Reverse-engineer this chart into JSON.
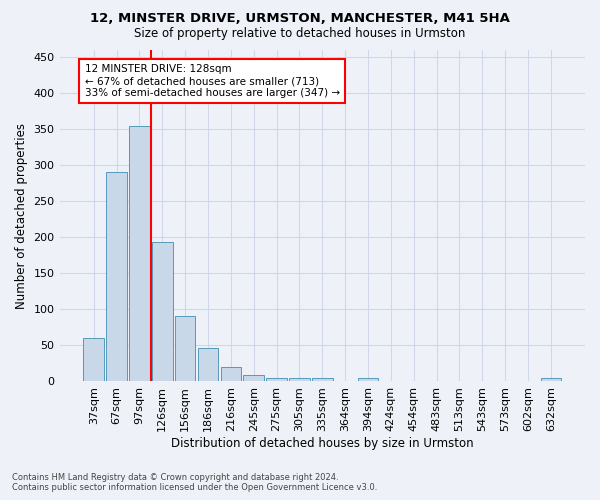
{
  "title": "12, MINSTER DRIVE, URMSTON, MANCHESTER, M41 5HA",
  "subtitle": "Size of property relative to detached houses in Urmston",
  "xlabel": "Distribution of detached houses by size in Urmston",
  "ylabel": "Number of detached properties",
  "footer_line1": "Contains HM Land Registry data © Crown copyright and database right 2024.",
  "footer_line2": "Contains public sector information licensed under the Open Government Licence v3.0.",
  "bar_labels": [
    "37sqm",
    "67sqm",
    "97sqm",
    "126sqm",
    "156sqm",
    "186sqm",
    "216sqm",
    "245sqm",
    "275sqm",
    "305sqm",
    "335sqm",
    "364sqm",
    "394sqm",
    "424sqm",
    "454sqm",
    "483sqm",
    "513sqm",
    "543sqm",
    "573sqm",
    "602sqm",
    "632sqm"
  ],
  "bar_values": [
    60,
    290,
    355,
    193,
    91,
    46,
    20,
    9,
    5,
    5,
    5,
    0,
    5,
    0,
    0,
    0,
    0,
    0,
    0,
    0,
    5
  ],
  "bar_color": "#c8d8e8",
  "bar_edge_color": "#5599bb",
  "grid_color": "#d0d8e8",
  "background_color": "#eef2f8",
  "annotation_line1": "12 MINSTER DRIVE: 128sqm",
  "annotation_line2": "← 67% of detached houses are smaller (713)",
  "annotation_line3": "33% of semi-detached houses are larger (347) →",
  "annotation_box_color": "white",
  "annotation_box_edge_color": "red",
  "vline_color": "red",
  "vline_pos": 2.5,
  "ylim": [
    0,
    460
  ],
  "yticks": [
    0,
    50,
    100,
    150,
    200,
    250,
    300,
    350,
    400,
    450
  ]
}
